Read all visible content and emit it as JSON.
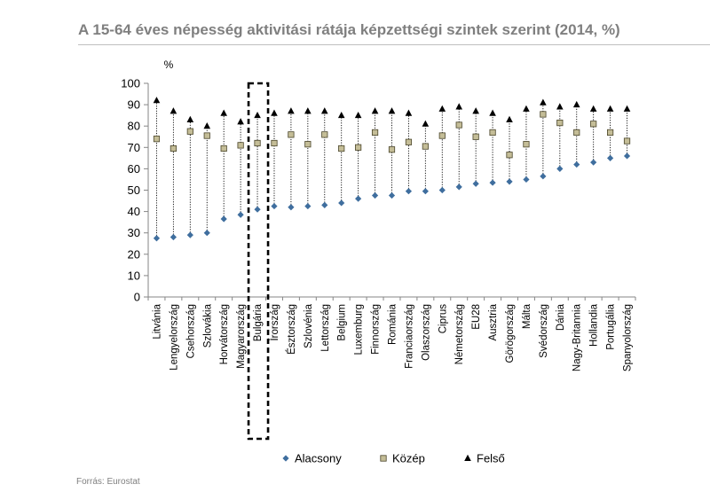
{
  "title": "A 15-64 éves népesség aktivitási rátája képzettségi szintek szerint (2014, %)",
  "source": "Forrás: Eurostat",
  "colors": {
    "low": "#3f6e9e",
    "mid_fill": "#c4bd97",
    "mid_stroke": "#494429",
    "high": "#000000",
    "title": "#7f7f7f"
  },
  "chart_data": {
    "type": "scatter",
    "ylabel": "%",
    "ylim": [
      0,
      100
    ],
    "yticks": [
      0,
      10,
      20,
      30,
      40,
      50,
      60,
      70,
      80,
      90,
      100
    ],
    "highlight": "Bulgária",
    "legend_position": "bottom",
    "categories": [
      "Litvánia",
      "Lengyelország",
      "Csehország",
      "Szlovákia",
      "Horvátország",
      "Magyarország",
      "Bulgária",
      "Írország",
      "Észtország",
      "Szlovénia",
      "Lettország",
      "Belgium",
      "Luxemburg",
      "Finnország",
      "Románia",
      "Franciaország",
      "Olaszország",
      "Ciprus",
      "Németország",
      "EU28",
      "Ausztria",
      "Görögország",
      "Málta",
      "Svédország",
      "Dánia",
      "Nagy-Britannia",
      "Hollandia",
      "Portugália",
      "Spanyolország"
    ],
    "series": [
      {
        "name": "Alacsony",
        "marker": "diamond",
        "values": [
          27.5,
          28,
          29,
          30,
          36.5,
          38.5,
          41,
          42.5,
          42,
          42.5,
          43,
          44,
          46,
          47.5,
          47.5,
          49.5,
          49.5,
          50,
          51.5,
          53,
          53.5,
          54,
          55,
          56.5,
          60,
          62,
          63,
          65,
          66
        ]
      },
      {
        "name": "Közép",
        "marker": "square",
        "values": [
          74,
          69.5,
          77.5,
          75.5,
          69.5,
          71,
          72,
          72,
          76,
          71.5,
          76,
          69.5,
          70,
          77,
          69,
          72.5,
          70.5,
          75.5,
          80.5,
          75,
          77,
          66.5,
          71.5,
          85.5,
          81.5,
          77,
          81,
          77,
          73
        ]
      },
      {
        "name": "Felső",
        "marker": "triangle",
        "values": [
          92,
          87,
          83,
          80,
          86,
          82,
          85,
          86,
          87,
          87,
          87,
          85,
          85,
          87,
          87,
          86,
          81,
          88,
          89,
          87,
          86,
          83,
          88,
          91,
          89,
          90,
          88,
          88,
          88
        ]
      }
    ]
  }
}
